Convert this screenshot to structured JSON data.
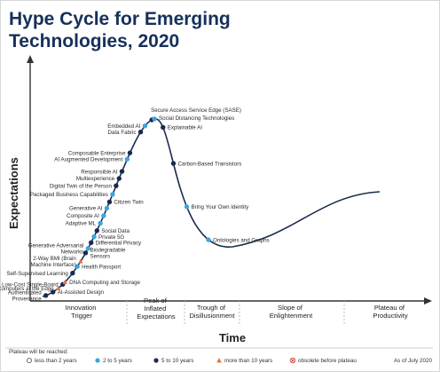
{
  "chart_data": {
    "type": "scatter",
    "title_lines": [
      "Hype Cycle for Emerging",
      "Technologies, 2020"
    ],
    "xlabel": "Time",
    "ylabel": "Expectations",
    "phases": [
      [
        "Innovation",
        "Trigger"
      ],
      [
        "Peak of",
        "Inflated",
        "Expectations"
      ],
      [
        "Trough of",
        "Disillusionment"
      ],
      [
        "Slope of",
        "Enlightenment"
      ],
      [
        "Plateau of",
        "Productivity"
      ]
    ],
    "legend": {
      "title": "Plateau will be reached:",
      "items": [
        {
          "key": "lt2",
          "label": "less than 2 years",
          "color": "#ffffff"
        },
        {
          "key": "2to5",
          "label": "2 to 5 years",
          "color": "#3aa6dd"
        },
        {
          "key": "5to10",
          "label": "5 to 10 years",
          "color": "#1b2a4e"
        },
        {
          "key": "gt10",
          "label": "more than 10 years",
          "color": "#e8743b"
        },
        {
          "key": "obs",
          "label": "obsolete before plateau",
          "color": "#d33a2f"
        }
      ],
      "asof": "As of July 2020"
    },
    "technologies": [
      {
        "name": "Authenticated Provenance",
        "t": 0.02,
        "plateau": "5to10"
      },
      {
        "name": "AI-Assisted Design",
        "t": 0.065,
        "plateau": "5to10"
      },
      {
        "name": "Computers at the Edge",
        "t": 0.1,
        "plateau": "gt10"
      },
      {
        "name": "Low-Cost Single-Board",
        "t": 0.13,
        "plateau": "5to10"
      },
      {
        "name": "DNA Computing and Storage",
        "t": 0.145,
        "plateau": "gt10"
      },
      {
        "name": "Self-Supervised Learning",
        "t": 0.2,
        "plateau": "5to10"
      },
      {
        "name": "Health Passport",
        "t": 0.235,
        "plateau": "2to5"
      },
      {
        "name": "2-Way BMI (Brain Machine Interface)",
        "t": 0.26,
        "plateau": "gt10"
      },
      {
        "name": "Biodegradable Sensors",
        "t": 0.3,
        "plateau": "5to10"
      },
      {
        "name": "Generative Adversarial Networks",
        "t": 0.32,
        "plateau": "2to5"
      },
      {
        "name": "Differential Privacy",
        "t": 0.345,
        "plateau": "5to10"
      },
      {
        "name": "Private 5G",
        "t": 0.37,
        "plateau": "2to5"
      },
      {
        "name": "Social Data",
        "t": 0.395,
        "plateau": "5to10"
      },
      {
        "name": "Adaptive ML",
        "t": 0.425,
        "plateau": "2to5"
      },
      {
        "name": "Composite AI",
        "t": 0.455,
        "plateau": "2to5"
      },
      {
        "name": "Generative AI",
        "t": 0.485,
        "plateau": "2to5"
      },
      {
        "name": "Citizen Twin",
        "t": 0.51,
        "plateau": "5to10"
      },
      {
        "name": "Packaged Business Capabilities",
        "t": 0.54,
        "plateau": "2to5"
      },
      {
        "name": "Digital Twin of the Person",
        "t": 0.575,
        "plateau": "5to10"
      },
      {
        "name": "Multiexperience",
        "t": 0.605,
        "plateau": "5to10"
      },
      {
        "name": "Responsible AI",
        "t": 0.635,
        "plateau": "5to10"
      },
      {
        "name": "AI Augmented Development",
        "t": 0.69,
        "plateau": "2to5"
      },
      {
        "name": "Composable Enterprise",
        "t": 0.72,
        "plateau": "5to10"
      },
      {
        "name": "Data Fabric",
        "t": 0.84,
        "plateau": "5to10"
      },
      {
        "name": "Embedded AI",
        "t": 0.89,
        "plateau": "2to5"
      },
      {
        "name": "Secure Access Service Edge (SASE)",
        "t": 0.97,
        "plateau": "5to10"
      },
      {
        "name": "Social Distancing Technologies",
        "t": 1.0,
        "plateau": "2to5"
      },
      {
        "name": "Explainable AI",
        "t": 0.17,
        "plateau": "5to10",
        "side": "down"
      },
      {
        "name": "Carbon-Based Transistors",
        "t": 0.4,
        "plateau": "5to10",
        "side": "down"
      },
      {
        "name": "Bring Your Own Identity",
        "t": 0.62,
        "plateau": "2to5",
        "side": "down"
      },
      {
        "name": "Ontologies and Graphs",
        "t": 0.84,
        "plateau": "2to5",
        "side": "down"
      }
    ]
  }
}
